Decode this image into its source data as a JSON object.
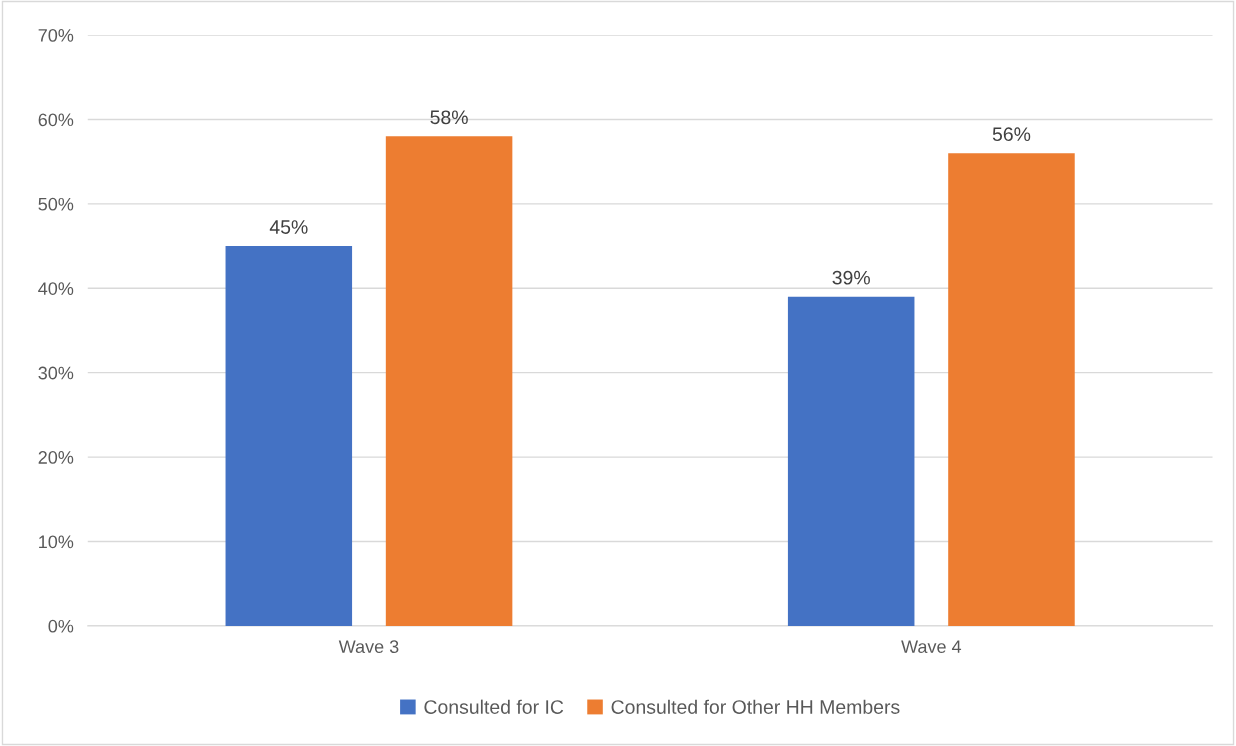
{
  "chart_data": {
    "type": "bar",
    "categories": [
      "Wave 3",
      "Wave 4"
    ],
    "series": [
      {
        "name": "Consulted for IC",
        "color": "#4472c4",
        "values": [
          45,
          39
        ],
        "value_labels": [
          "45%",
          "39%"
        ]
      },
      {
        "name": "Consulted for Other HH Members",
        "color": "#ed7d31",
        "values": [
          58,
          56
        ],
        "value_labels": [
          "58%",
          "56%"
        ]
      }
    ],
    "ylim": [
      0,
      70
    ],
    "yticks": [
      {
        "value": 0,
        "label": "0%"
      },
      {
        "value": 10,
        "label": "10%"
      },
      {
        "value": 20,
        "label": "20%"
      },
      {
        "value": 30,
        "label": "30%"
      },
      {
        "value": 40,
        "label": "40%"
      },
      {
        "value": 50,
        "label": "50%"
      },
      {
        "value": 60,
        "label": "60%"
      },
      {
        "value": 70,
        "label": "70%"
      }
    ],
    "grid": "y",
    "legend": "bottom"
  }
}
